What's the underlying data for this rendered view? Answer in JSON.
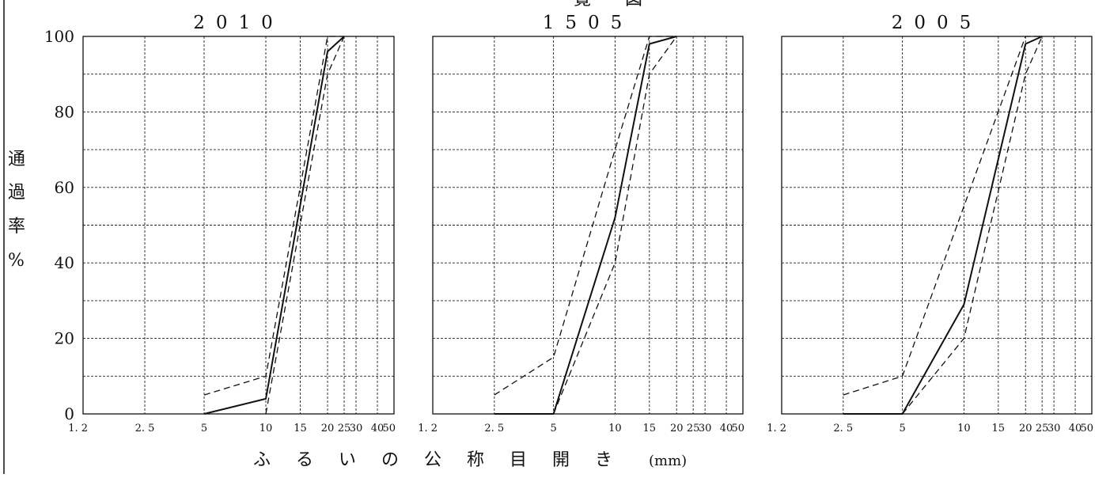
{
  "header_fragment": "ー 覧 図",
  "y_label_chars": [
    "通",
    "過",
    "率",
    "%"
  ],
  "x_label_chars": [
    "ふ",
    "る",
    "い",
    "の",
    "公",
    "称",
    "目",
    "開",
    "き"
  ],
  "x_unit": "(mm)",
  "y_ticks": [
    {
      "value": 0,
      "label": "0"
    },
    {
      "value": 20,
      "label": "20"
    },
    {
      "value": 40,
      "label": "40"
    },
    {
      "value": 60,
      "label": "60"
    },
    {
      "value": 80,
      "label": "80"
    },
    {
      "value": 100,
      "label": "100"
    }
  ],
  "x_ticks": [
    {
      "value": 1.2,
      "label": "1. 2"
    },
    {
      "value": 2.5,
      "label": "2. 5"
    },
    {
      "value": 5,
      "label": "5"
    },
    {
      "value": 10,
      "label": "10"
    },
    {
      "value": 15,
      "label": "15"
    },
    {
      "value": 20,
      "label": "20"
    },
    {
      "value": 25,
      "label": "25"
    },
    {
      "value": 30,
      "label": "30"
    },
    {
      "value": 40,
      "label": "40"
    },
    {
      "value": 50,
      "label": "50"
    }
  ],
  "colors": {
    "line": "#111111",
    "grid": "#222222",
    "frame": "#111111"
  },
  "chart_data": [
    {
      "type": "line",
      "title": "2010",
      "x_scale": "sieve (log-like)",
      "ylim": [
        0,
        100
      ],
      "grid": true,
      "series": [
        {
          "style": "solid",
          "x": [
            5,
            10,
            20,
            25
          ],
          "y": [
            0,
            4,
            96,
            100
          ]
        },
        {
          "style": "dashed",
          "x": [
            5,
            10,
            20,
            25
          ],
          "y": [
            5,
            10,
            100,
            100
          ]
        },
        {
          "style": "dashed",
          "x": [
            10,
            20,
            25
          ],
          "y": [
            0,
            90,
            100
          ]
        }
      ]
    },
    {
      "type": "line",
      "title": "1505",
      "x_scale": "sieve (log-like)",
      "ylim": [
        0,
        100
      ],
      "grid": true,
      "series": [
        {
          "style": "solid",
          "x": [
            2.5,
            5,
            10,
            15,
            20
          ],
          "y": [
            0,
            0,
            52,
            98,
            100
          ]
        },
        {
          "style": "dashed",
          "x": [
            2.5,
            5,
            10,
            15,
            20
          ],
          "y": [
            5,
            15,
            70,
            100,
            100
          ]
        },
        {
          "style": "dashed",
          "x": [
            5,
            10,
            15,
            20
          ],
          "y": [
            0,
            40,
            90,
            100
          ]
        }
      ]
    },
    {
      "type": "line",
      "title": "2005",
      "x_scale": "sieve (log-like)",
      "ylim": [
        0,
        100
      ],
      "grid": true,
      "series": [
        {
          "style": "solid",
          "x": [
            2.5,
            5,
            10,
            20,
            25
          ],
          "y": [
            0,
            0,
            29,
            98,
            100
          ]
        },
        {
          "style": "dashed",
          "x": [
            2.5,
            5,
            10,
            20,
            25
          ],
          "y": [
            5,
            10,
            55,
            100,
            100
          ]
        },
        {
          "style": "dashed",
          "x": [
            5,
            10,
            20,
            25
          ],
          "y": [
            0,
            20,
            90,
            100
          ]
        }
      ]
    }
  ]
}
